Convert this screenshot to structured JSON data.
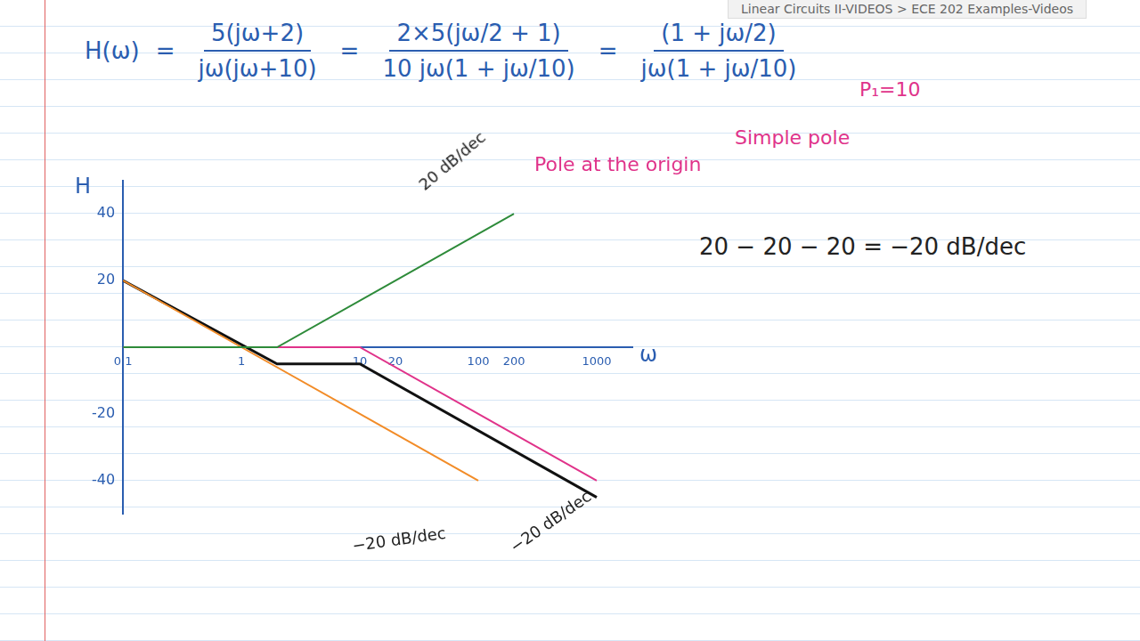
{
  "header": "Linear Circuits II-VIDEOS > ECE 202 Examples-Videos",
  "equation": {
    "lhs": "H(ω)",
    "sep": "=",
    "fractions": [
      {
        "num": "5(jω+2)",
        "den": "jω(jω+10)"
      },
      {
        "num": "2×5(jω/2 + 1)",
        "den": "10 jω(1 + jω/10)"
      },
      {
        "num": "(1 + jω/2)",
        "den": "jω(1 + jω/10)"
      }
    ]
  },
  "notes": {
    "pole_origin": "Pole at the origin",
    "simple_pole": "Simple pole",
    "p1": "P₁=10",
    "slope_sum": "20 − 20 − 20 = −20 dB/dec"
  },
  "chart_data": {
    "type": "line",
    "x_label": "ω",
    "y_label": "H",
    "log": "x",
    "grid": false,
    "xlim": [
      0.1,
      2000
    ],
    "xticks": [
      0.1,
      1,
      10,
      20,
      100,
      200,
      1000
    ],
    "ylim": [
      -50,
      50
    ],
    "yticks": [
      -40,
      -20,
      20,
      40
    ],
    "series": [
      {
        "color": "#2e8b3a",
        "x": [
          0.1,
          2,
          20,
          200
        ],
        "values": [
          0,
          0,
          20,
          40
        ]
      },
      {
        "color": "#f28c28",
        "x": [
          0.1,
          1,
          10,
          100
        ],
        "values": [
          20,
          0,
          -20,
          -40
        ]
      },
      {
        "color": "#e0338a",
        "x": [
          0.1,
          10,
          100,
          1000
        ],
        "values": [
          0,
          0,
          -20,
          -40
        ]
      },
      {
        "color": "#111111",
        "x": [
          0.1,
          2,
          10,
          1000
        ],
        "values": [
          20,
          -5,
          -5,
          -45
        ]
      }
    ],
    "annotations": [
      "20 dB/dec",
      "−20 dB/dec",
      "−20 dB/dec"
    ]
  }
}
